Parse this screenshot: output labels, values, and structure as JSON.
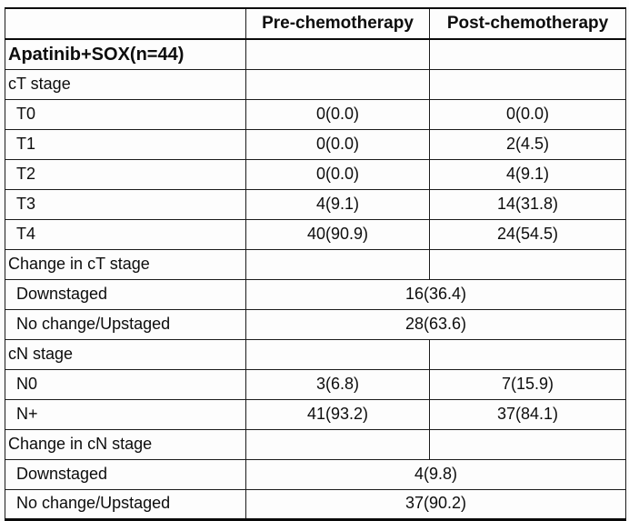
{
  "table": {
    "columns": [
      "",
      "Pre-chemotherapy",
      "Post-chemotherapy"
    ],
    "rows": [
      {
        "label": "Apatinib+SOX(n=44)",
        "pre": "",
        "post": ""
      },
      {
        "label": "cT stage",
        "pre": "",
        "post": ""
      },
      {
        "label": "T0",
        "pre": "0(0.0)",
        "post": "0(0.0)"
      },
      {
        "label": "T1",
        "pre": "0(0.0)",
        "post": "2(4.5)"
      },
      {
        "label": "T2",
        "pre": "0(0.0)",
        "post": "4(9.1)"
      },
      {
        "label": "T3",
        "pre": "4(9.1)",
        "post": "14(31.8)"
      },
      {
        "label": "T4",
        "pre": "40(90.9)",
        "post": "24(54.5)"
      },
      {
        "label": "Change in cT stage",
        "pre": "",
        "post": ""
      },
      {
        "label": "Downstaged",
        "merged": "16(36.4)"
      },
      {
        "label": "No change/Upstaged",
        "merged": "28(63.6)"
      },
      {
        "label": "cN stage",
        "pre": "",
        "post": ""
      },
      {
        "label": "N0",
        "pre": "3(6.8)",
        "post": "7(15.9)"
      },
      {
        "label": "N+",
        "pre": "41(93.2)",
        "post": "37(84.1)"
      },
      {
        "label": "Change in cN stage",
        "pre": "",
        "post": ""
      },
      {
        "label": "Downstaged",
        "merged": "4(9.8)"
      },
      {
        "label": "No change/Upstaged",
        "merged": "37(90.2)"
      }
    ]
  }
}
